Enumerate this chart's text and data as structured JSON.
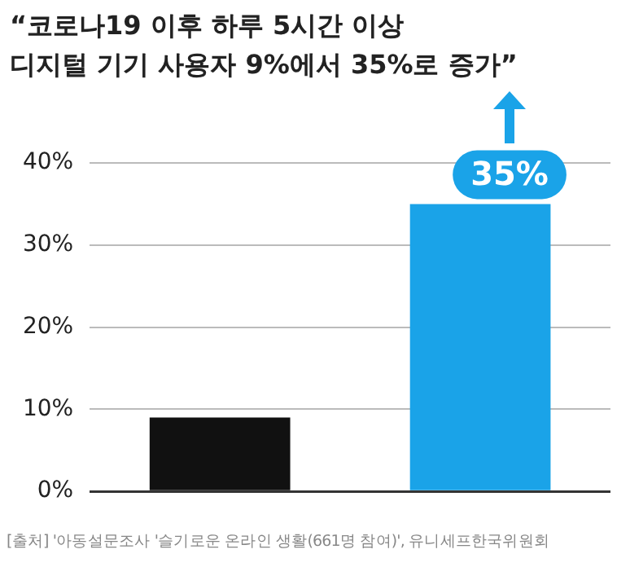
{
  "chart_data": {
    "type": "bar",
    "title": "“코로나19 이후 하루 5시간 이상\n디지털 기기 사용자 9%에서 35%로 증가”",
    "categories": [
      null,
      null
    ],
    "values": [
      9,
      35
    ],
    "colors": [
      "#111111",
      "#1aa3e8"
    ],
    "value_labels": [
      null,
      "35%"
    ],
    "ylim": [
      0,
      40
    ],
    "yticks": [
      {
        "value": 0,
        "label": "0%"
      },
      {
        "value": 10,
        "label": "10%"
      },
      {
        "value": 20,
        "label": "20%"
      },
      {
        "value": 30,
        "label": "30%"
      },
      {
        "value": 40,
        "label": "40%"
      }
    ],
    "grid": "y",
    "legend": false,
    "annotations": [
      "[출처] '아동설문조사 '슬기로운 온라인 생활(661명 참여)', 유니세프한국위원회"
    ]
  }
}
